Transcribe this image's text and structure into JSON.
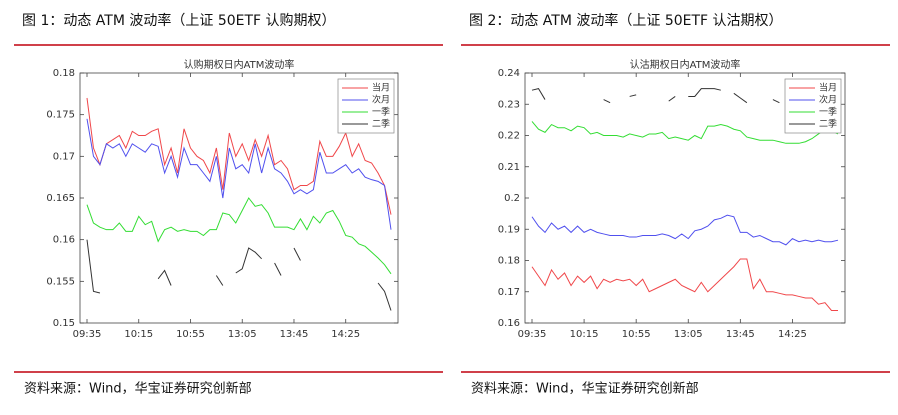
{
  "chart_data": [
    {
      "type": "line",
      "title": "图 1：动态 ATM 波动率（上证 50ETF 认购期权）",
      "plot_title": "认购期权日内ATM波动率",
      "source": "资料来源：Wind，华宝证券研究创新部",
      "categories": [
        "09:35",
        null,
        null,
        null,
        null,
        null,
        null,
        null,
        "10:15",
        null,
        null,
        null,
        null,
        null,
        null,
        null,
        "10:55",
        null,
        null,
        null,
        null,
        null,
        null,
        null,
        "13:05",
        null,
        null,
        null,
        null,
        null,
        null,
        null,
        "13:45",
        null,
        null,
        null,
        null,
        null,
        null,
        null,
        "14:25",
        null,
        null,
        null,
        null,
        null,
        null,
        null
      ],
      "ylim": [
        0.15,
        0.18
      ],
      "yticks": [
        0.15,
        0.155,
        0.16,
        0.165,
        0.17,
        0.175,
        0.18
      ],
      "legend": "upper right",
      "grid": false,
      "series": [
        {
          "name": "当月",
          "color": "#f0474a",
          "values": [
            0.177,
            0.171,
            0.169,
            0.1715,
            0.172,
            0.1725,
            0.171,
            0.173,
            0.1725,
            0.1725,
            0.173,
            0.1733,
            0.169,
            0.171,
            0.168,
            0.1733,
            0.171,
            0.17,
            0.1695,
            0.168,
            0.171,
            0.166,
            0.1728,
            0.17,
            0.1715,
            0.1695,
            0.172,
            0.17,
            0.1725,
            0.169,
            0.1695,
            0.1685,
            0.166,
            0.1665,
            0.1665,
            0.167,
            0.1718,
            0.17,
            0.17,
            0.1712,
            0.1728,
            0.17,
            0.1715,
            0.1695,
            0.1692,
            0.168,
            0.1665,
            0.163
          ]
        },
        {
          "name": "次月",
          "color": "#5050ee",
          "values": [
            0.1745,
            0.17,
            0.169,
            0.1715,
            0.171,
            0.1715,
            0.17,
            0.1715,
            0.171,
            0.1705,
            0.1715,
            0.1712,
            0.168,
            0.17,
            0.1675,
            0.171,
            0.169,
            0.169,
            0.168,
            0.167,
            0.17,
            0.165,
            0.171,
            0.1685,
            0.169,
            0.168,
            0.1715,
            0.168,
            0.171,
            0.1685,
            0.168,
            0.167,
            0.1655,
            0.166,
            0.1655,
            0.166,
            0.1705,
            0.168,
            0.168,
            0.1685,
            0.169,
            0.168,
            0.1685,
            0.1675,
            0.1672,
            0.167,
            0.1665,
            0.1612
          ]
        },
        {
          "name": "一季",
          "color": "#33dd33",
          "values": [
            0.1642,
            0.162,
            0.1615,
            0.1612,
            0.1612,
            0.162,
            0.161,
            0.161,
            0.1628,
            0.1618,
            0.1622,
            0.1598,
            0.1612,
            0.1615,
            0.161,
            0.1612,
            0.161,
            0.161,
            0.1605,
            0.1612,
            0.1612,
            0.1632,
            0.163,
            0.162,
            0.1635,
            0.165,
            0.164,
            0.1642,
            0.1632,
            0.1615,
            0.1615,
            0.1615,
            0.1612,
            0.1625,
            0.1612,
            0.1628,
            0.162,
            0.1632,
            0.1635,
            0.1622,
            0.1605,
            0.1603,
            0.1595,
            0.1592,
            0.1585,
            0.1578,
            0.157,
            0.1559
          ]
        },
        {
          "name": "二季",
          "color": "#333333",
          "values": [
            0.16,
            0.1538,
            0.1536,
            null,
            null,
            null,
            null,
            null,
            null,
            null,
            null,
            0.1553,
            0.1563,
            0.1545,
            null,
            null,
            null,
            null,
            null,
            null,
            0.1557,
            0.1545,
            null,
            0.156,
            0.1565,
            0.159,
            0.1585,
            0.1577,
            null,
            0.1572,
            0.1557,
            null,
            0.159,
            0.1575,
            null,
            null,
            null,
            null,
            null,
            null,
            null,
            null,
            null,
            null,
            null,
            0.1548,
            0.1538,
            0.1515
          ]
        }
      ]
    },
    {
      "type": "line",
      "title": "图 2：动态 ATM 波动率（上证 50ETF 认沽期权）",
      "plot_title": "认沽期权日内ATM波动率",
      "source": "资料来源：Wind，华宝证券研究创新部",
      "categories": [
        "09:35",
        null,
        null,
        null,
        null,
        null,
        null,
        null,
        "10:15",
        null,
        null,
        null,
        null,
        null,
        null,
        null,
        "10:55",
        null,
        null,
        null,
        null,
        null,
        null,
        null,
        "13:05",
        null,
        null,
        null,
        null,
        null,
        null,
        null,
        "13:45",
        null,
        null,
        null,
        null,
        null,
        null,
        null,
        "14:25",
        null,
        null,
        null,
        null,
        null,
        null,
        null
      ],
      "ylim": [
        0.16,
        0.24
      ],
      "yticks": [
        0.16,
        0.17,
        0.18,
        0.19,
        0.2,
        0.21,
        0.22,
        0.23,
        0.24
      ],
      "legend": "upper right",
      "grid": false,
      "series": [
        {
          "name": "当月",
          "color": "#f0474a",
          "values": [
            0.178,
            0.175,
            0.172,
            0.177,
            0.174,
            0.176,
            0.172,
            0.175,
            0.173,
            0.175,
            0.171,
            0.174,
            0.173,
            0.174,
            0.1735,
            0.174,
            0.172,
            0.174,
            0.17,
            0.171,
            0.172,
            0.173,
            0.174,
            0.172,
            0.171,
            0.17,
            0.173,
            0.17,
            0.172,
            0.174,
            0.176,
            0.178,
            0.1805,
            0.1805,
            0.171,
            0.174,
            0.17,
            0.17,
            0.1695,
            0.169,
            0.169,
            0.1685,
            0.168,
            0.168,
            0.166,
            0.1665,
            0.164,
            0.164
          ]
        },
        {
          "name": "次月",
          "color": "#5050ee",
          "values": [
            0.194,
            0.191,
            0.189,
            0.192,
            0.19,
            0.191,
            0.189,
            0.191,
            0.189,
            0.19,
            0.189,
            0.1885,
            0.188,
            0.188,
            0.188,
            0.1875,
            0.1875,
            0.188,
            0.188,
            0.188,
            0.1885,
            0.188,
            0.187,
            0.1885,
            0.187,
            0.1895,
            0.19,
            0.191,
            0.193,
            0.1935,
            0.1945,
            0.194,
            0.189,
            0.189,
            0.1875,
            0.188,
            0.187,
            0.186,
            0.186,
            0.185,
            0.187,
            0.186,
            0.1865,
            0.186,
            0.1865,
            0.186,
            0.186,
            0.1865
          ]
        },
        {
          "name": "一季",
          "color": "#33dd33",
          "values": [
            0.2245,
            0.222,
            0.221,
            0.2235,
            0.2225,
            0.2225,
            0.2215,
            0.223,
            0.2225,
            0.2205,
            0.221,
            0.22,
            0.22,
            0.22,
            0.2195,
            0.2205,
            0.22,
            0.2195,
            0.2205,
            0.2205,
            0.221,
            0.219,
            0.2195,
            0.219,
            0.2185,
            0.22,
            0.219,
            0.223,
            0.223,
            0.2235,
            0.223,
            0.222,
            0.2215,
            0.2195,
            0.219,
            0.2185,
            0.2185,
            0.2185,
            0.218,
            0.2175,
            0.2175,
            0.2175,
            0.218,
            0.219,
            0.2205,
            0.222,
            0.2215,
            0.2205
          ]
        },
        {
          "name": "二季",
          "color": "#333333",
          "values": [
            0.2345,
            0.235,
            0.2315,
            null,
            null,
            null,
            null,
            null,
            null,
            null,
            null,
            0.2315,
            0.2305,
            null,
            null,
            0.2325,
            0.233,
            null,
            null,
            null,
            null,
            0.231,
            0.2325,
            null,
            0.2325,
            0.2325,
            0.235,
            0.235,
            0.235,
            0.2345,
            null,
            0.2335,
            0.232,
            0.2305,
            null,
            null,
            null,
            0.2315,
            0.2305,
            null,
            null,
            null,
            null,
            null,
            null,
            null,
            null,
            null
          ]
        }
      ]
    }
  ]
}
